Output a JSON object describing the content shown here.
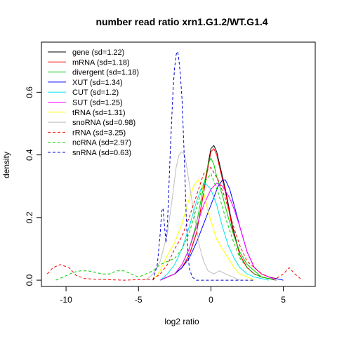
{
  "chart_data": {
    "type": "line",
    "title": "number read ratio xrn1.G1.2/WT.G1.4",
    "xlabel": "log2 ratio",
    "ylabel": "density",
    "xlim": [
      -11.7,
      7.2
    ],
    "ylim": [
      -0.02,
      0.76
    ],
    "xticks": [
      -10,
      -5,
      0,
      5
    ],
    "yticks": [
      0.0,
      0.2,
      0.4,
      0.6
    ],
    "xtick_labels": [
      "-10",
      "-5",
      "0",
      "5"
    ],
    "ytick_labels": [
      "0.0",
      "0.2",
      "0.4",
      "0.6"
    ],
    "legend_position": "top-left",
    "grid": false,
    "series": [
      {
        "name": "gene (sd=1.22)",
        "color": "#000000",
        "dash": false,
        "x": [
          -3.5,
          -3,
          -2.5,
          -2,
          -1.5,
          -1,
          -0.5,
          -0.2,
          0,
          0.2,
          0.4,
          0.6,
          1,
          1.5,
          2,
          2.5,
          3,
          3.5,
          4,
          4.5
        ],
        "y": [
          0,
          0.01,
          0.02,
          0.04,
          0.08,
          0.15,
          0.28,
          0.37,
          0.42,
          0.43,
          0.41,
          0.37,
          0.29,
          0.17,
          0.08,
          0.04,
          0.02,
          0.01,
          0.005,
          0
        ]
      },
      {
        "name": "mRNA (sd=1.18)",
        "color": "#ff0000",
        "dash": false,
        "x": [
          -3.5,
          -3,
          -2.5,
          -2,
          -1.5,
          -1,
          -0.5,
          -0.2,
          0,
          0.2,
          0.4,
          0.6,
          1,
          1.5,
          2,
          2.5,
          3,
          3.5,
          4,
          4.5
        ],
        "y": [
          0,
          0.01,
          0.02,
          0.04,
          0.08,
          0.15,
          0.28,
          0.36,
          0.41,
          0.42,
          0.4,
          0.36,
          0.28,
          0.16,
          0.08,
          0.04,
          0.02,
          0.01,
          0.005,
          0
        ]
      },
      {
        "name": "divergent (sd=1.18)",
        "color": "#00cd00",
        "dash": false,
        "x": [
          -3.5,
          -3,
          -2.5,
          -2,
          -1.5,
          -1,
          -0.5,
          -0.2,
          0,
          0.2,
          0.4,
          0.8,
          1.2,
          1.6,
          2,
          2.5,
          3,
          3.5,
          4,
          4.5
        ],
        "y": [
          0,
          0.01,
          0.02,
          0.05,
          0.1,
          0.18,
          0.3,
          0.37,
          0.39,
          0.37,
          0.33,
          0.27,
          0.2,
          0.14,
          0.09,
          0.05,
          0.03,
          0.01,
          0.005,
          0
        ]
      },
      {
        "name": "XUT (sd=1.34)",
        "color": "#0000ff",
        "dash": false,
        "x": [
          -3.5,
          -3,
          -2.5,
          -2,
          -1.5,
          -1,
          -0.5,
          0,
          0.5,
          0.8,
          1,
          1.3,
          1.6,
          2,
          2.5,
          3,
          3.5,
          4,
          4.5,
          5
        ],
        "y": [
          0,
          0.01,
          0.02,
          0.04,
          0.07,
          0.12,
          0.18,
          0.24,
          0.3,
          0.32,
          0.32,
          0.29,
          0.24,
          0.17,
          0.09,
          0.04,
          0.02,
          0.01,
          0.005,
          0
        ]
      },
      {
        "name": "CUT (sd=1.2)",
        "color": "#00e5ee",
        "dash": false,
        "x": [
          -3.5,
          -3,
          -2.5,
          -2,
          -1.5,
          -1,
          -0.7,
          -0.4,
          0,
          0.4,
          0.8,
          1.2,
          1.6,
          2,
          2.5,
          3,
          3.5,
          4
        ],
        "y": [
          0,
          0.02,
          0.05,
          0.1,
          0.17,
          0.25,
          0.29,
          0.31,
          0.29,
          0.24,
          0.17,
          0.11,
          0.07,
          0.04,
          0.02,
          0.01,
          0.005,
          0
        ]
      },
      {
        "name": "SUT (sd=1.25)",
        "color": "#ff00ff",
        "dash": false,
        "x": [
          -3.5,
          -3,
          -2.5,
          -2,
          -1.5,
          -1,
          -0.5,
          0,
          0.4,
          0.8,
          1.2,
          1.5,
          2,
          2.5,
          3,
          3.5,
          4,
          4.5
        ],
        "y": [
          0,
          0.01,
          0.02,
          0.05,
          0.1,
          0.17,
          0.24,
          0.29,
          0.31,
          0.3,
          0.27,
          0.24,
          0.17,
          0.09,
          0.04,
          0.02,
          0.01,
          0
        ]
      },
      {
        "name": "tRNA (sd=1.31)",
        "color": "#ffff00",
        "dash": false,
        "x": [
          -4,
          -3.5,
          -3,
          -2.5,
          -2,
          -1.5,
          -1.2,
          -0.9,
          -0.6,
          -0.2,
          0,
          0.4,
          0.8,
          1.2,
          1.6,
          2,
          2.5,
          3
        ],
        "y": [
          0,
          0.03,
          0.08,
          0.12,
          0.18,
          0.26,
          0.3,
          0.32,
          0.3,
          0.22,
          0.19,
          0.13,
          0.1,
          0.07,
          0.04,
          0.02,
          0.01,
          0
        ]
      },
      {
        "name": "snoRNA (sd=0.98)",
        "color": "#bebebe",
        "dash": false,
        "x": [
          -4.5,
          -4,
          -3.5,
          -3,
          -2.7,
          -2.4,
          -2.2,
          -2,
          -1.8,
          -1.5,
          -1.2,
          -1,
          -0.8,
          -0.5,
          -0.2,
          0.2,
          0.6,
          1,
          1.5,
          2
        ],
        "y": [
          0,
          0.02,
          0.06,
          0.15,
          0.25,
          0.36,
          0.4,
          0.41,
          0.4,
          0.31,
          0.22,
          0.17,
          0.11,
          0.06,
          0.03,
          0.02,
          0.03,
          0.02,
          0.01,
          0
        ]
      },
      {
        "name": "rRNA (sd=3.25)",
        "color": "#ff0000",
        "dash": true,
        "x": [
          -11.3,
          -10.9,
          -10.4,
          -9.8,
          -9.3,
          -8.7,
          -8,
          -6,
          -4,
          -3.5,
          -3,
          -2.5,
          -2,
          -1.5,
          -1,
          -0.5,
          0,
          0.5,
          1,
          1.5,
          2,
          2.5,
          3,
          3.5,
          4,
          4.5,
          5,
          5.4,
          5.8,
          6.3
        ],
        "y": [
          0.02,
          0.04,
          0.05,
          0.04,
          0.015,
          0.005,
          0.003,
          0,
          0.003,
          0.02,
          0.05,
          0.1,
          0.14,
          0.2,
          0.27,
          0.34,
          0.36,
          0.32,
          0.26,
          0.18,
          0.11,
          0.06,
          0.04,
          0.02,
          0.01,
          0.005,
          0.02,
          0.04,
          0.02,
          0
        ]
      },
      {
        "name": "ncRNA (sd=2.97)",
        "color": "#00cd00",
        "dash": true,
        "x": [
          -10.7,
          -10.2,
          -9.5,
          -9,
          -8.5,
          -8,
          -7.5,
          -7,
          -6.5,
          -6,
          -5.5,
          -5,
          -4.5,
          -4,
          -3.5,
          -3,
          -2.5,
          -2,
          -1.5,
          -1,
          -0.5,
          0,
          0.5,
          1,
          1.5,
          2,
          2.5,
          3,
          3.5,
          4,
          4.5
        ],
        "y": [
          0,
          0.01,
          0.025,
          0.03,
          0.03,
          0.025,
          0.02,
          0.02,
          0.03,
          0.03,
          0.02,
          0.01,
          0.02,
          0.03,
          0.05,
          0.06,
          0.07,
          0.1,
          0.15,
          0.23,
          0.31,
          0.34,
          0.28,
          0.2,
          0.13,
          0.07,
          0.04,
          0.02,
          0.01,
          0.005,
          0
        ]
      },
      {
        "name": "snRNA (sd=0.63)",
        "color": "#0000cd",
        "dash": true,
        "x": [
          -4,
          -3.7,
          -3.5,
          -3.4,
          -3.3,
          -3.2,
          -3.1,
          -3,
          -2.9,
          -2.8,
          -2.7,
          -2.6,
          -2.5,
          -2.4,
          -2.3,
          -2.2,
          -2.1,
          -2,
          -1.9,
          -1.8,
          -1.7,
          -1.6,
          -1.5,
          -1.3,
          -1,
          -0.5,
          0,
          0.5,
          1,
          1.5,
          2,
          3
        ],
        "y": [
          0,
          0.05,
          0.15,
          0.22,
          0.23,
          0.17,
          0.12,
          0.18,
          0.3,
          0.42,
          0.52,
          0.62,
          0.68,
          0.72,
          0.73,
          0.7,
          0.65,
          0.58,
          0.47,
          0.34,
          0.2,
          0.1,
          0.04,
          0.01,
          0,
          0,
          0,
          0,
          0,
          0,
          0,
          0
        ]
      }
    ]
  }
}
